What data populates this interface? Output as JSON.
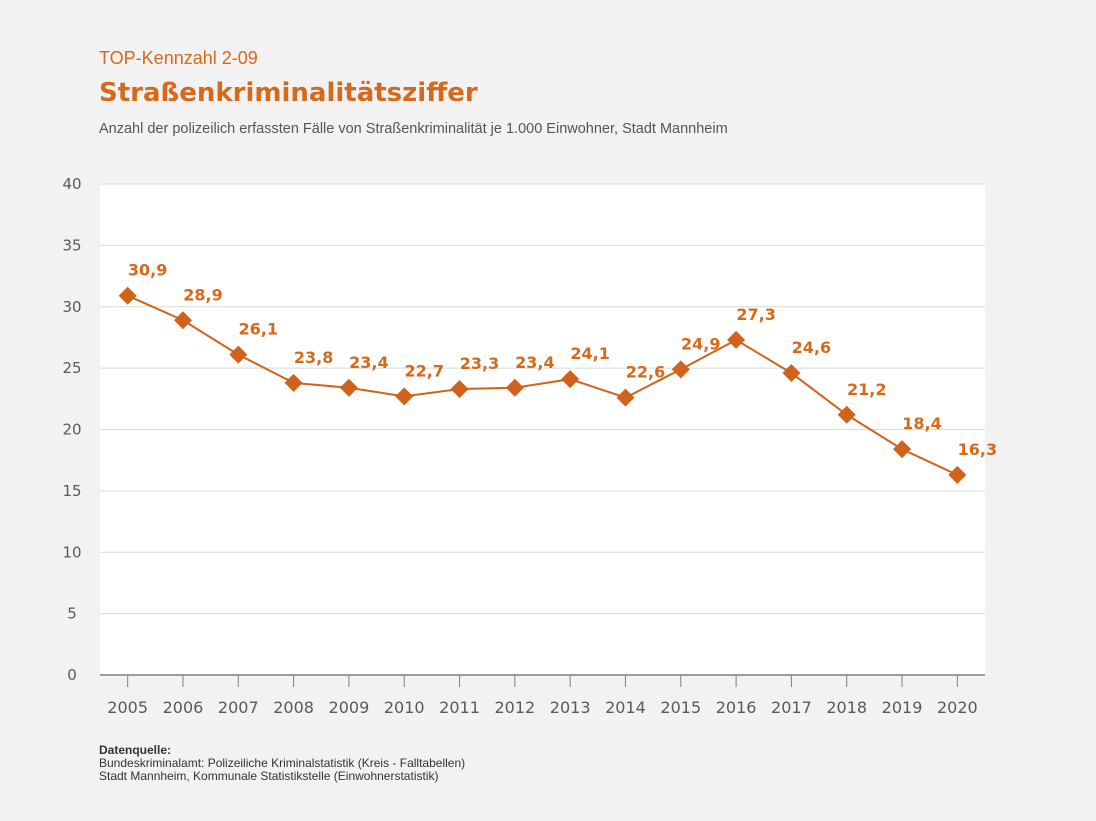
{
  "header": {
    "kicker": "TOP-Kennzahl 2-09",
    "title": "Straßenkriminalitätsziffer",
    "subtitle": "Anzahl der polizeilich erfassten Fälle von Straßenkriminalität je 1.000 Einwohner, Stadt Mannheim"
  },
  "source": {
    "heading": "Datenquelle:",
    "lines": [
      "Bundeskriminalamt: Polizeiliche Kriminalstatistik (Kreis - Falltabellen)",
      "Stadt Mannheim, Kommunale Statistikstelle (Einwohnerstatistik)"
    ]
  },
  "colors": {
    "series": "#d0621b",
    "label": "#d46a1a",
    "grid": "#d9d9d9",
    "axis": "#7f7f7f"
  },
  "chart_data": {
    "type": "line",
    "title": "Straßenkriminalitätsziffer",
    "xlabel": "",
    "ylabel": "",
    "categories": [
      "2005",
      "2006",
      "2007",
      "2008",
      "2009",
      "2010",
      "2011",
      "2012",
      "2013",
      "2014",
      "2015",
      "2016",
      "2017",
      "2018",
      "2019",
      "2020"
    ],
    "series": [
      {
        "name": "Straßenkriminalitätsziffer",
        "values": [
          30.9,
          28.9,
          26.1,
          23.8,
          23.4,
          22.7,
          23.3,
          23.4,
          24.1,
          22.6,
          24.9,
          27.3,
          24.6,
          21.2,
          18.4,
          16.3
        ]
      }
    ],
    "data_labels": [
      "30,9",
      "28,9",
      "26,1",
      "23,8",
      "23,4",
      "22,7",
      "23,3",
      "23,4",
      "24,1",
      "22,6",
      "24,9",
      "27,3",
      "24,6",
      "21,2",
      "18,4",
      "16,3"
    ],
    "ylim": [
      0,
      40
    ],
    "yticks": [
      0,
      5,
      10,
      15,
      20,
      25,
      30,
      35,
      40
    ],
    "grid": true,
    "legend": "none",
    "marker": "diamond"
  }
}
